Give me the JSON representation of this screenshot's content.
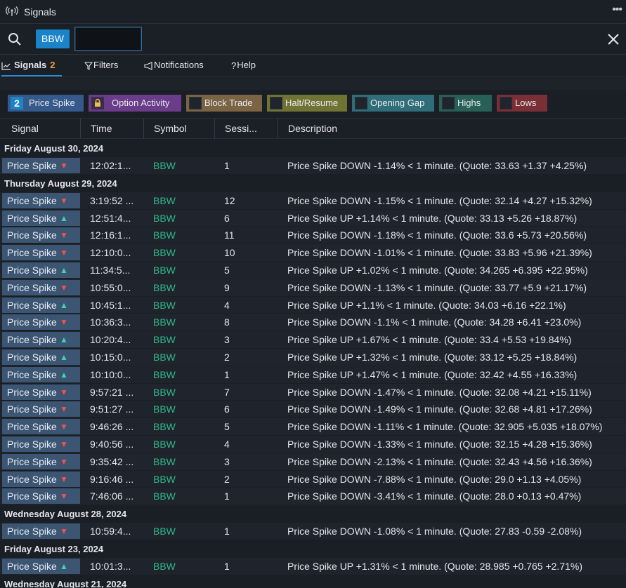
{
  "window": {
    "title": "Signals",
    "more_icon": "ellipsis-icon",
    "icon": "broadcast-icon"
  },
  "search": {
    "chip": "BBW",
    "value": "",
    "placeholder": ""
  },
  "tabs": [
    {
      "label": "Signals",
      "count": "2",
      "icon": "chart-line-icon"
    },
    {
      "label": "Filters",
      "icon": "funnel-icon"
    },
    {
      "label": "Notifications",
      "icon": "megaphone-icon"
    },
    {
      "label": "Help",
      "icon": "question-icon"
    }
  ],
  "filter_chips": [
    {
      "label": "Price Spike",
      "count": "2",
      "color": "#35598a"
    },
    {
      "label": "Option Activity",
      "color": "#6a3c8a"
    },
    {
      "label": "Block Trade",
      "color": "#7a6444"
    },
    {
      "label": "Halt/Resume",
      "color": "#6f7434"
    },
    {
      "label": "Opening Gap",
      "color": "#2f6e78"
    },
    {
      "label": "Highs",
      "color": "#285f57"
    },
    {
      "label": "Lows",
      "color": "#7a2e36"
    }
  ],
  "columns": {
    "signal": "Signal",
    "time": "Time",
    "symbol": "Symbol",
    "session": "Sessi...",
    "description": "Description"
  },
  "groups": [
    {
      "date": "Friday August 30, 2024",
      "rows": [
        {
          "signal": "Price Spike",
          "dir": "down",
          "time": "12:02:1...",
          "symbol": "BBW",
          "session": "1",
          "desc": "Price Spike DOWN -1.14% < 1 minute. (Quote: 33.63 +1.37 +4.25%)"
        }
      ]
    },
    {
      "date": "Thursday August 29, 2024",
      "rows": [
        {
          "signal": "Price Spike",
          "dir": "down",
          "time": "3:19:52 ...",
          "symbol": "BBW",
          "session": "12",
          "desc": "Price Spike DOWN -1.15% < 1 minute. (Quote: 32.14 +4.27 +15.32%)"
        },
        {
          "signal": "Price Spike",
          "dir": "up",
          "time": "12:51:4...",
          "symbol": "BBW",
          "session": "6",
          "desc": "Price Spike UP +1.14% < 1 minute. (Quote: 33.13 +5.26 +18.87%)"
        },
        {
          "signal": "Price Spike",
          "dir": "down",
          "time": "12:16:1...",
          "symbol": "BBW",
          "session": "11",
          "desc": "Price Spike DOWN -1.18% < 1 minute. (Quote: 33.6 +5.73 +20.56%)"
        },
        {
          "signal": "Price Spike",
          "dir": "down",
          "time": "12:10:0...",
          "symbol": "BBW",
          "session": "10",
          "desc": "Price Spike DOWN -1.01% < 1 minute. (Quote: 33.83 +5.96 +21.39%)"
        },
        {
          "signal": "Price Spike",
          "dir": "up",
          "time": "11:34:5...",
          "symbol": "BBW",
          "session": "5",
          "desc": "Price Spike UP +1.02% < 1 minute. (Quote: 34.265 +6.395 +22.95%)"
        },
        {
          "signal": "Price Spike",
          "dir": "down",
          "time": "10:55:0...",
          "symbol": "BBW",
          "session": "9",
          "desc": "Price Spike DOWN -1.13% < 1 minute. (Quote: 33.77 +5.9 +21.17%)"
        },
        {
          "signal": "Price Spike",
          "dir": "up",
          "time": "10:45:1...",
          "symbol": "BBW",
          "session": "4",
          "desc": "Price Spike UP +1.1% < 1 minute. (Quote: 34.03 +6.16 +22.1%)"
        },
        {
          "signal": "Price Spike",
          "dir": "down",
          "time": "10:36:3...",
          "symbol": "BBW",
          "session": "8",
          "desc": "Price Spike DOWN -1.1% < 1 minute. (Quote: 34.28 +6.41 +23.0%)"
        },
        {
          "signal": "Price Spike",
          "dir": "up",
          "time": "10:20:4...",
          "symbol": "BBW",
          "session": "3",
          "desc": "Price Spike UP +1.67% < 1 minute. (Quote: 33.4 +5.53 +19.84%)"
        },
        {
          "signal": "Price Spike",
          "dir": "up",
          "time": "10:15:0...",
          "symbol": "BBW",
          "session": "2",
          "desc": "Price Spike UP +1.32% < 1 minute. (Quote: 33.12 +5.25 +18.84%)"
        },
        {
          "signal": "Price Spike",
          "dir": "up",
          "time": "10:10:0...",
          "symbol": "BBW",
          "session": "1",
          "desc": "Price Spike UP +1.47% < 1 minute. (Quote: 32.42 +4.55 +16.33%)"
        },
        {
          "signal": "Price Spike",
          "dir": "down",
          "time": "9:57:21 ...",
          "symbol": "BBW",
          "session": "7",
          "desc": "Price Spike DOWN -1.47% < 1 minute. (Quote: 32.08 +4.21 +15.11%)"
        },
        {
          "signal": "Price Spike",
          "dir": "down",
          "time": "9:51:27 ...",
          "symbol": "BBW",
          "session": "6",
          "desc": "Price Spike DOWN -1.49% < 1 minute. (Quote: 32.68 +4.81 +17.26%)"
        },
        {
          "signal": "Price Spike",
          "dir": "down",
          "time": "9:46:26 ...",
          "symbol": "BBW",
          "session": "5",
          "desc": "Price Spike DOWN -1.11% < 1 minute. (Quote: 32.905 +5.035 +18.07%)"
        },
        {
          "signal": "Price Spike",
          "dir": "down",
          "time": "9:40:56 ...",
          "symbol": "BBW",
          "session": "4",
          "desc": "Price Spike DOWN -1.33% < 1 minute. (Quote: 32.15 +4.28 +15.36%)"
        },
        {
          "signal": "Price Spike",
          "dir": "down",
          "time": "9:35:42 ...",
          "symbol": "BBW",
          "session": "3",
          "desc": "Price Spike DOWN -2.13% < 1 minute. (Quote: 32.43 +4.56 +16.36%)"
        },
        {
          "signal": "Price Spike",
          "dir": "down",
          "time": "9:16:46 ...",
          "symbol": "BBW",
          "session": "2",
          "desc": "Price Spike DOWN -7.88% < 1 minute. (Quote: 29.0 +1.13 +4.05%)"
        },
        {
          "signal": "Price Spike",
          "dir": "down",
          "time": "7:46:06 ...",
          "symbol": "BBW",
          "session": "1",
          "desc": "Price Spike DOWN -3.41% < 1 minute. (Quote: 28.0 +0.13 +0.47%)"
        }
      ]
    },
    {
      "date": "Wednesday August 28, 2024",
      "rows": [
        {
          "signal": "Price Spike",
          "dir": "down",
          "time": "10:59:4...",
          "symbol": "BBW",
          "session": "1",
          "desc": "Price Spike DOWN -1.08% < 1 minute. (Quote: 27.83 -0.59 -2.08%)"
        }
      ]
    },
    {
      "date": "Friday August 23, 2024",
      "rows": [
        {
          "signal": "Price Spike",
          "dir": "up",
          "time": "10:01:3...",
          "symbol": "BBW",
          "session": "1",
          "desc": "Price Spike UP +1.31% < 1 minute. (Quote: 28.985 +0.765 +2.71%)"
        }
      ]
    },
    {
      "date": "Wednesday August 21, 2024",
      "rows": []
    }
  ]
}
